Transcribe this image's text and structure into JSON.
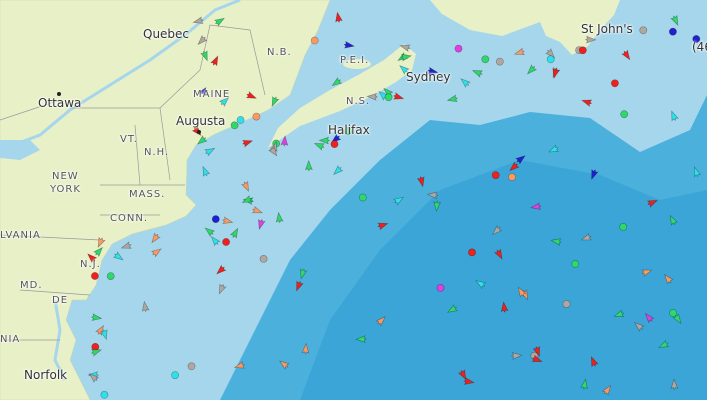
{
  "map": {
    "labels": {
      "quebec": "Quebec",
      "ottawa": "Ottawa",
      "augusta": "Augusta",
      "maine": "MAINE",
      "nb": "N.B.",
      "pei": "P.E.I.",
      "ns": "N.S.",
      "sydney": "Sydney",
      "halifax": "Halifax",
      "st_johns": "St John's",
      "vt": "VT.",
      "nh": "N.H.",
      "new": "NEW",
      "york": "YORK",
      "mass": "MASS.",
      "conn": "CONN.",
      "nj": "N.J.",
      "md": "MD.",
      "de": "DE",
      "pennsylvania": "LVANIA",
      "virginia": "NIA",
      "norfolk": "Norfolk",
      "edge_label": "(46"
    },
    "colors": {
      "land": "#e8f0c8",
      "shallow_water": "#a6d6ec",
      "deep_water": "#3ba9d9",
      "cargo": "#2fd86a",
      "tanker": "#f0201e",
      "passenger": "#2020d0",
      "fishing": "#f79a66",
      "tug_special": "#30e0e8",
      "pleasure": "#e040e0",
      "unspecified": "#b0a8a0",
      "high_speed": "#f8e020"
    }
  }
}
